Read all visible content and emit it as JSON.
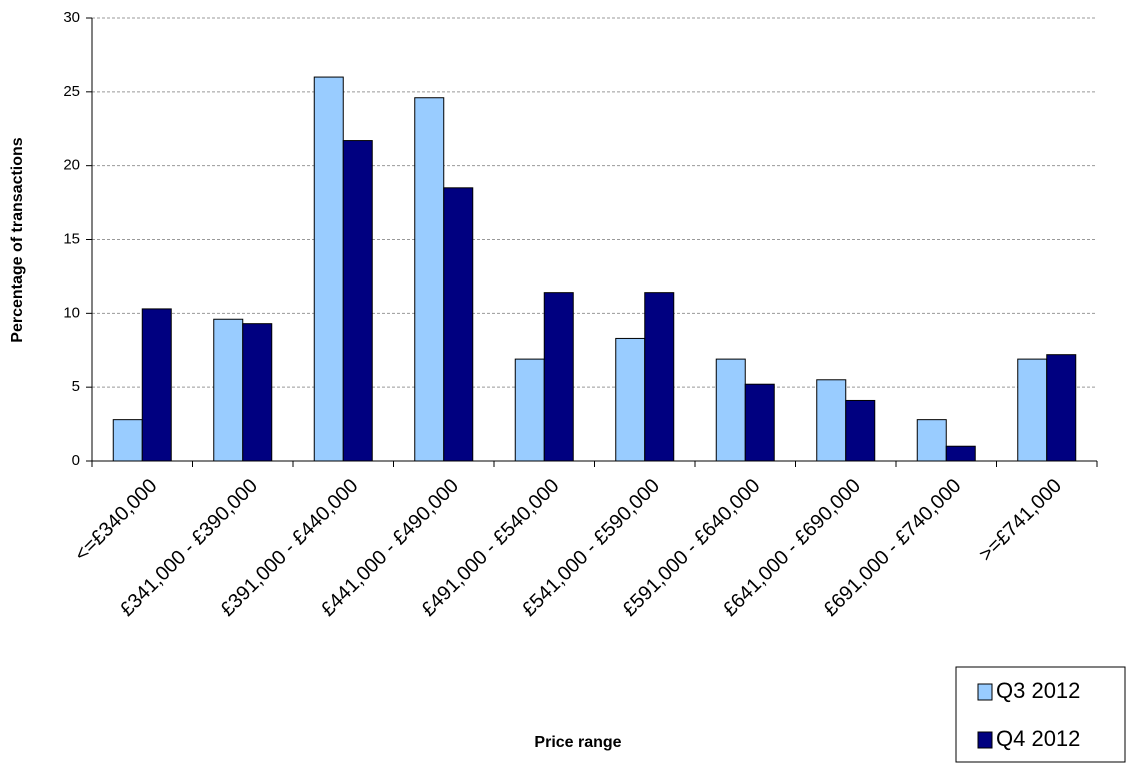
{
  "chart_data": {
    "type": "bar",
    "x_label": "Price range",
    "y_label": "Percentage of transactions",
    "categories": [
      "<=£340,000",
      "£341,000 - £390,000",
      "£391,000 - £440,000",
      "£441,000 - £490,000",
      "£491,000 - £540,000",
      "£541,000 - £590,000",
      "£591,000 - £640,000",
      "£641,000 - £690,000",
      "£691,000 - £740,000",
      ">=£741,000"
    ],
    "series": [
      {
        "name": "Q3 2012",
        "color": "#99ccff",
        "values": [
          2.8,
          9.6,
          26.0,
          24.6,
          6.9,
          8.3,
          6.9,
          5.5,
          2.8,
          6.9
        ]
      },
      {
        "name": "Q4 2012",
        "color": "#000080",
        "values": [
          10.3,
          9.3,
          21.7,
          18.5,
          11.4,
          11.4,
          5.2,
          4.1,
          1.0,
          7.2
        ]
      }
    ],
    "ylim": [
      0,
      30
    ],
    "yticks": [
      0,
      5,
      10,
      15,
      20,
      25,
      30
    ],
    "grid": true,
    "legend": "bottom-right"
  }
}
